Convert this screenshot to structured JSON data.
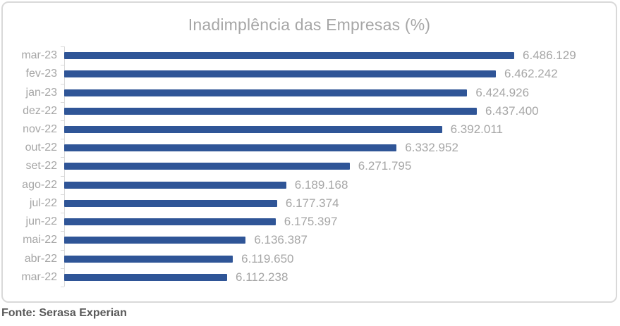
{
  "title": "Inadimplência das Empresas (%)",
  "footer": "Fonte: Serasa Experian",
  "colors": {
    "bar": "#2f5597",
    "title_text": "#a6a6a6",
    "label_text": "#a6a6a6",
    "axis_line": "#d9d9d9",
    "card_border": "#d9d9d9",
    "source_text": "#595959",
    "background": "#ffffff"
  },
  "chart_data": {
    "type": "bar",
    "orientation": "horizontal",
    "title": "Inadimplência das Empresas (%)",
    "categories": [
      "mar-23",
      "fev-23",
      "jan-23",
      "dez-22",
      "nov-22",
      "out-22",
      "set-22",
      "ago-22",
      "jul-22",
      "jun-22",
      "mai-22",
      "abr-22",
      "mar-22"
    ],
    "values": [
      6486129,
      6462242,
      6424926,
      6437400,
      6392011,
      6332952,
      6271795,
      6189168,
      6177374,
      6175397,
      6136387,
      6119650,
      6112238
    ],
    "value_labels": [
      "6.486.129",
      "6.462.242",
      "6.424.926",
      "6.437.400",
      "6.392.011",
      "6.332.952",
      "6.271.795",
      "6.189.168",
      "6.177.374",
      "6.175.397",
      "6.136.387",
      "6.119.650",
      "6.112.238"
    ],
    "xlim": [
      5900000,
      6600000
    ],
    "xlabel": "",
    "ylabel": "",
    "grid": false,
    "legend": false,
    "source": "Fonte: Serasa Experian"
  }
}
